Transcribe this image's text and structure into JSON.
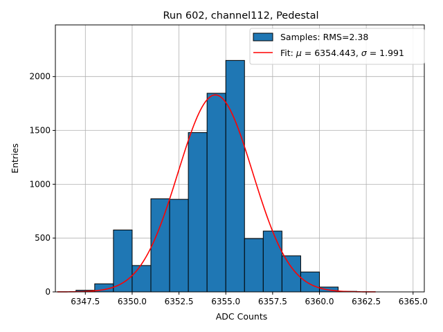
{
  "chart_data": {
    "type": "bar",
    "title": "Run 602, channel112, Pedestal",
    "xlabel": "ADC Counts",
    "ylabel": "Entries",
    "xlim": [
      6345.9,
      6365.6
    ],
    "ylim": [
      0,
      2480
    ],
    "xticks": [
      6347.5,
      6350.0,
      6352.5,
      6355.0,
      6357.5,
      6360.0,
      6362.5,
      6365.0
    ],
    "xtick_labels": [
      "6347.5",
      "6350.0",
      "6352.5",
      "6355.0",
      "6357.5",
      "6360.0",
      "6362.5",
      "6365.0"
    ],
    "yticks": [
      0,
      500,
      1000,
      1500,
      2000
    ],
    "ytick_labels": [
      "0",
      "500",
      "1000",
      "1500",
      "2000"
    ],
    "grid": true,
    "legend_position": "top-right",
    "histogram": {
      "bin_width": 1.0,
      "bins": [
        {
          "left": 6347.0,
          "value": 15
        },
        {
          "left": 6348.0,
          "value": 75
        },
        {
          "left": 6349.0,
          "value": 575
        },
        {
          "left": 6350.0,
          "value": 245
        },
        {
          "left": 6351.0,
          "value": 865
        },
        {
          "left": 6352.0,
          "value": 860
        },
        {
          "left": 6353.0,
          "value": 1480
        },
        {
          "left": 6354.0,
          "value": 1845
        },
        {
          "left": 6355.0,
          "value": 2150
        },
        {
          "left": 6356.0,
          "value": 495
        },
        {
          "left": 6357.0,
          "value": 565
        },
        {
          "left": 6358.0,
          "value": 335
        },
        {
          "left": 6359.0,
          "value": 185
        },
        {
          "left": 6360.0,
          "value": 45
        },
        {
          "left": 6361.0,
          "value": 5
        }
      ]
    },
    "fit": {
      "mu": 6354.443,
      "sigma": 1.991,
      "amplitude": 1830,
      "x_range": [
        6346.0,
        6363.0
      ]
    },
    "legend": {
      "samples_label": "Samples: RMS=2.38",
      "fit_label_prefix": "Fit: ",
      "mu_symbol": "μ",
      "fit_label_mid": " = 6354.443, ",
      "sigma_symbol": "σ",
      "fit_label_end": " = 1.991"
    },
    "colors": {
      "bar_fill": "#1f77b4",
      "bar_edge": "#000000",
      "fit_line": "#ff0000",
      "grid": "#b0b0b0"
    }
  }
}
